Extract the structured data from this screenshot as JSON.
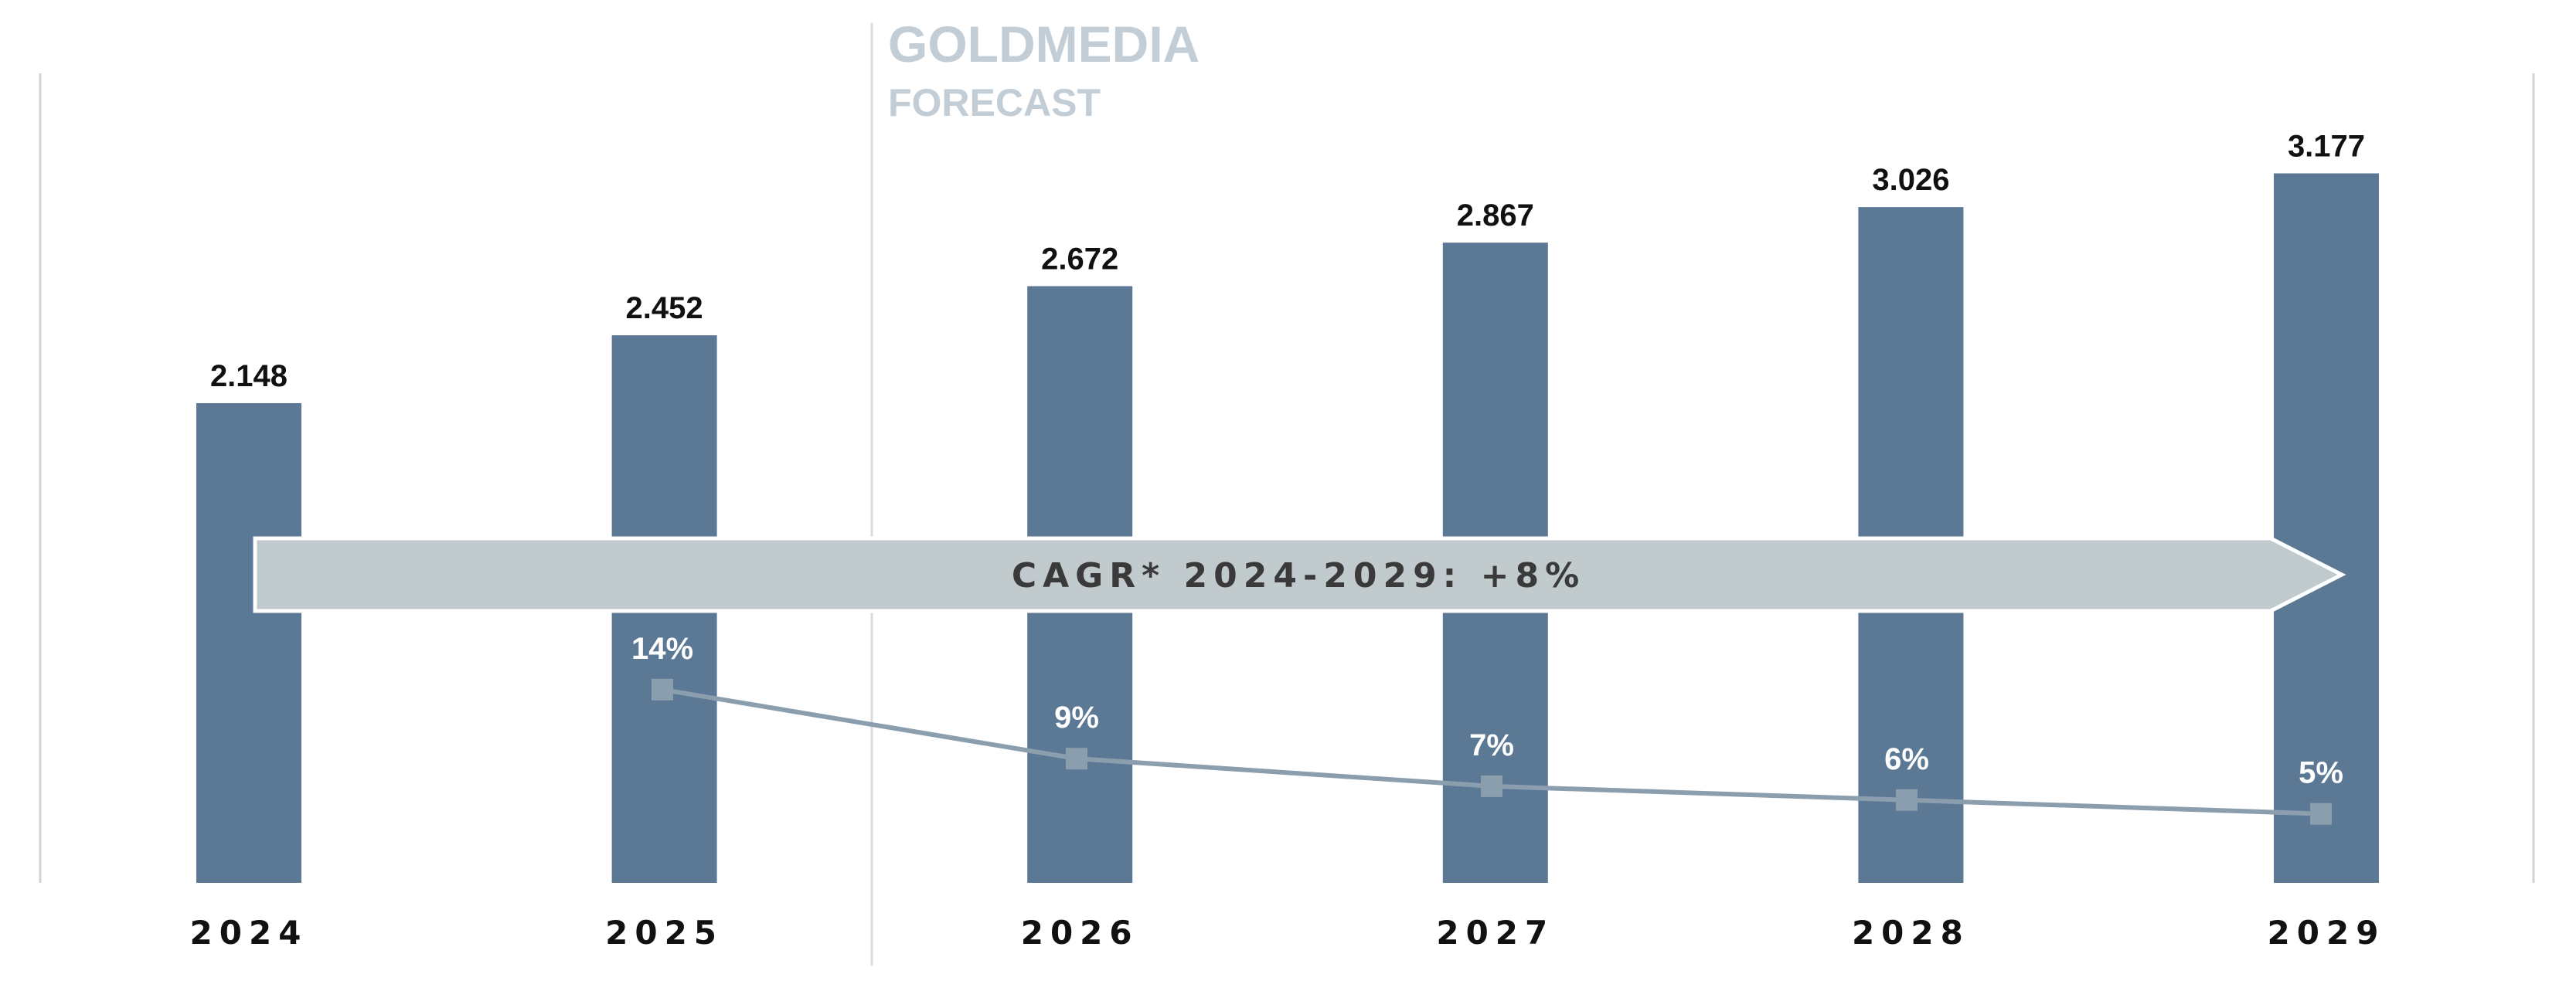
{
  "chart_data": {
    "type": "bar",
    "categories": [
      "2024",
      "2025",
      "2026",
      "2027",
      "2028",
      "2029"
    ],
    "series": [
      {
        "values": [
          2148,
          2452,
          2672,
          2867,
          3026,
          3177
        ],
        "value_labels": [
          "2.148",
          "2.452",
          "2.672",
          "2.867",
          "3.026",
          "3.177"
        ]
      },
      {
        "type": "line",
        "values": [
          null,
          14,
          9,
          7,
          6,
          5
        ],
        "value_labels": [
          null,
          "14%",
          "9%",
          "7%",
          "6%",
          "5%"
        ]
      }
    ],
    "ylim": [
      0,
      3400
    ],
    "growth_ylim": [
      0,
      55
    ],
    "forecast_label": {
      "line1": "GOLDMEDIA",
      "line2": "FORECAST"
    },
    "annotation": "CAGR* 2024-2029: +8%",
    "colors": {
      "bar": "#5b7894",
      "line": "#8b9eae",
      "arrow": "#c1cacd",
      "axis_rule": "#d0d4d8",
      "forecast_text": "#c2cdd6",
      "value_text": "#111111"
    }
  }
}
